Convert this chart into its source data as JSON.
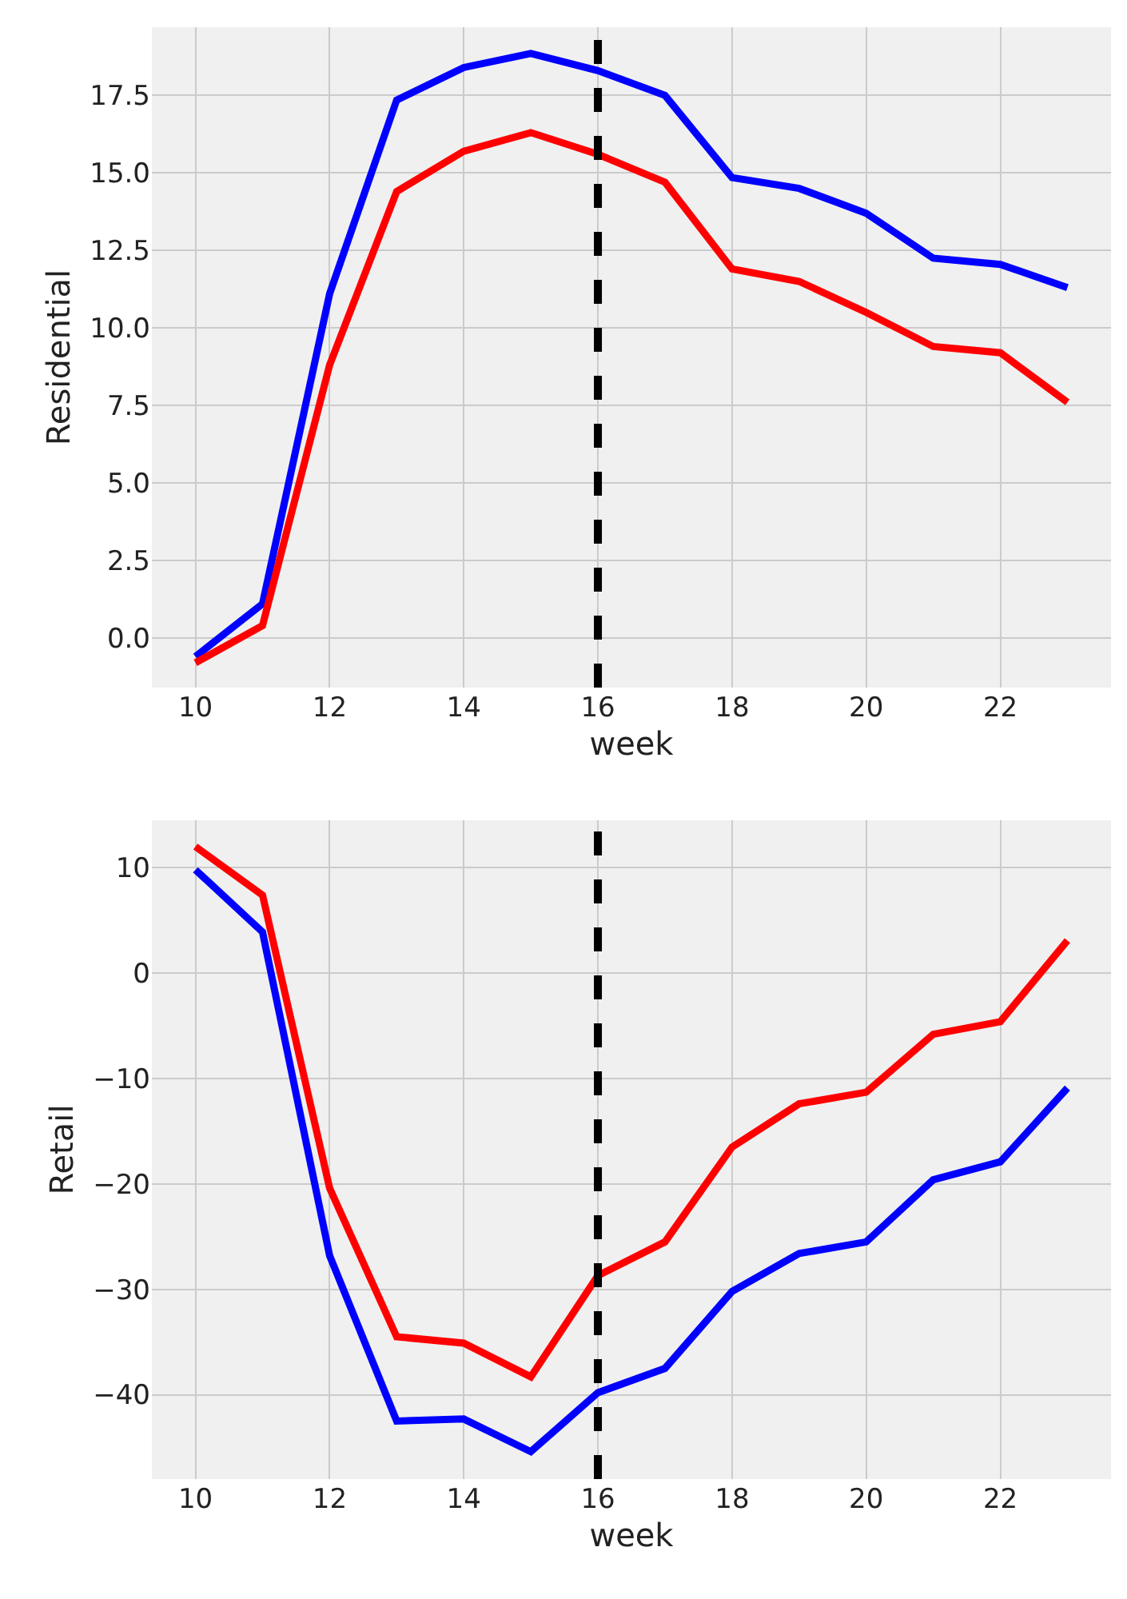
{
  "chart_data": [
    {
      "type": "line",
      "xlabel": "week",
      "ylabel": "Residential",
      "x": [
        10,
        11,
        12,
        13,
        14,
        15,
        16,
        17,
        18,
        19,
        20,
        21,
        22,
        23
      ],
      "series": [
        {
          "color": "#0000ff",
          "values": [
            -0.6,
            1.1,
            11.1,
            17.35,
            18.4,
            18.85,
            18.3,
            17.5,
            14.85,
            14.5,
            13.7,
            12.25,
            12.05,
            11.3
          ]
        },
        {
          "color": "#ff0000",
          "values": [
            -0.8,
            0.4,
            8.8,
            14.4,
            15.7,
            16.3,
            15.6,
            14.7,
            11.9,
            11.5,
            10.5,
            9.4,
            9.2,
            7.6
          ]
        }
      ],
      "xlim": [
        9.35,
        23.65
      ],
      "ylim": [
        -1.6,
        19.7
      ],
      "xticks": [
        10,
        12,
        14,
        16,
        18,
        20,
        22
      ],
      "yticks": [
        {
          "value": 0,
          "label": "0.0"
        },
        {
          "value": 2.5,
          "label": "2.5"
        },
        {
          "value": 5,
          "label": "5.0"
        },
        {
          "value": 7.5,
          "label": "7.5"
        },
        {
          "value": 10,
          "label": "10.0"
        },
        {
          "value": 12.5,
          "label": "12.5"
        },
        {
          "value": 15,
          "label": "15.0"
        },
        {
          "value": 17.5,
          "label": "17.5"
        }
      ],
      "ref_lines": [
        {
          "axis": "x",
          "value": 16,
          "color": "#000000",
          "line_style": "dashed"
        }
      ],
      "grid": true,
      "legend": false,
      "line_style": "solid",
      "marker": "none"
    },
    {
      "type": "line",
      "xlabel": "week",
      "ylabel": "Retail",
      "x": [
        10,
        11,
        12,
        13,
        14,
        15,
        16,
        17,
        18,
        19,
        20,
        21,
        22,
        23
      ],
      "series": [
        {
          "color": "#0000ff",
          "values": [
            9.8,
            3.9,
            -26.8,
            -42.5,
            -42.3,
            -45.4,
            -39.8,
            -37.5,
            -30.2,
            -26.6,
            -25.5,
            -19.6,
            -17.9,
            -10.9
          ]
        },
        {
          "color": "#ff0000",
          "values": [
            12.0,
            7.4,
            -20.4,
            -34.5,
            -35.1,
            -38.3,
            -28.7,
            -25.5,
            -16.5,
            -12.4,
            -11.3,
            -5.8,
            -4.6,
            3.1
          ]
        }
      ],
      "xlim": [
        9.35,
        23.65
      ],
      "ylim": [
        -48,
        14.5
      ],
      "xticks": [
        10,
        12,
        14,
        16,
        18,
        20,
        22
      ],
      "yticks": [
        {
          "value": -40,
          "label": "−40"
        },
        {
          "value": -30,
          "label": "−30"
        },
        {
          "value": -20,
          "label": "−20"
        },
        {
          "value": -10,
          "label": "−10"
        },
        0,
        10
      ],
      "ref_lines": [
        {
          "axis": "x",
          "value": 16,
          "color": "#000000",
          "line_style": "dashed"
        }
      ],
      "grid": true,
      "legend": false,
      "line_style": "solid",
      "marker": "none"
    }
  ]
}
